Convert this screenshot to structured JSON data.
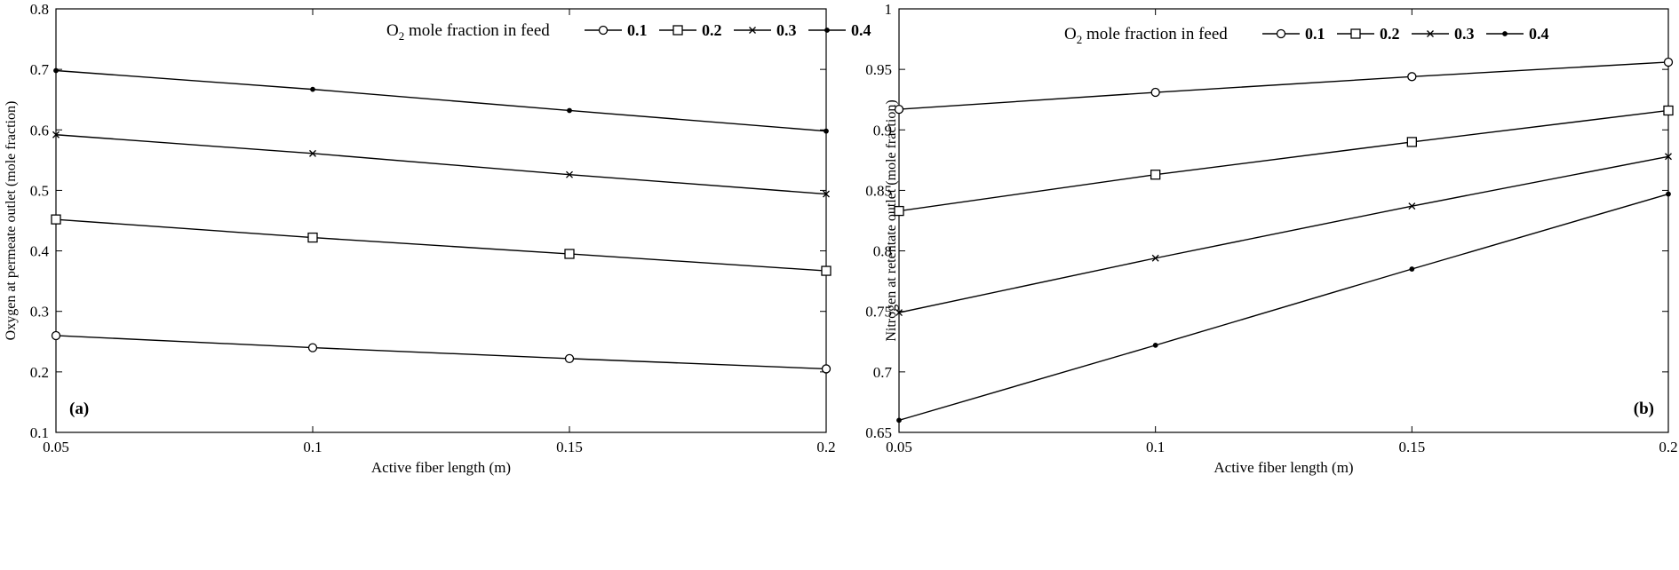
{
  "chart_data": [
    {
      "type": "line",
      "panel_label": "(a)",
      "xlabel": "Active fiber length (m)",
      "ylabel": "Oxygen at permeate outlet (mole fraction)",
      "legend_title": "O2 mole fraction  in feed",
      "legend_placement": "top-right",
      "xlim": [
        0.05,
        0.2
      ],
      "ylim": [
        0.1,
        0.8
      ],
      "xticks": [
        "0.05",
        "0.1",
        "0.15",
        "0.2"
      ],
      "yticks": [
        "0.1",
        "0.2",
        "0.3",
        "0.4",
        "0.5",
        "0.6",
        "0.7",
        "0.8"
      ],
      "x": [
        0.05,
        0.1,
        0.15,
        0.2
      ],
      "series": [
        {
          "name": "0.1",
          "marker": "circle",
          "values": [
            0.26,
            0.24,
            0.222,
            0.205
          ]
        },
        {
          "name": "0.2",
          "marker": "square",
          "values": [
            0.452,
            0.422,
            0.395,
            0.367
          ]
        },
        {
          "name": "0.3",
          "marker": "x",
          "values": [
            0.592,
            0.561,
            0.526,
            0.494
          ]
        },
        {
          "name": "0.4",
          "marker": "dot",
          "values": [
            0.698,
            0.667,
            0.632,
            0.598
          ]
        }
      ],
      "grid": false
    },
    {
      "type": "line",
      "panel_label": "(b)",
      "xlabel": "Active fiber length (m)",
      "ylabel": "Nitrogen at retentate outlet (mole fraction)",
      "legend_title": "O2 mole fraction  in feed",
      "legend_placement": "top-right",
      "xlim": [
        0.05,
        0.2
      ],
      "ylim": [
        0.65,
        1.0
      ],
      "xticks": [
        "0.05",
        "0.1",
        "0.15",
        "0.2"
      ],
      "yticks": [
        "0.65",
        "0.7",
        "0.75",
        "0.8",
        "0.85",
        "0.9",
        "0.95",
        "1"
      ],
      "x": [
        0.05,
        0.1,
        0.15,
        0.2
      ],
      "series": [
        {
          "name": "0.1",
          "marker": "circle",
          "values": [
            0.917,
            0.931,
            0.944,
            0.956
          ]
        },
        {
          "name": "0.2",
          "marker": "square",
          "values": [
            0.833,
            0.863,
            0.89,
            0.916
          ]
        },
        {
          "name": "0.3",
          "marker": "x",
          "values": [
            0.749,
            0.794,
            0.837,
            0.878
          ]
        },
        {
          "name": "0.4",
          "marker": "dot",
          "values": [
            0.66,
            0.722,
            0.785,
            0.847
          ]
        }
      ],
      "grid": false
    }
  ]
}
